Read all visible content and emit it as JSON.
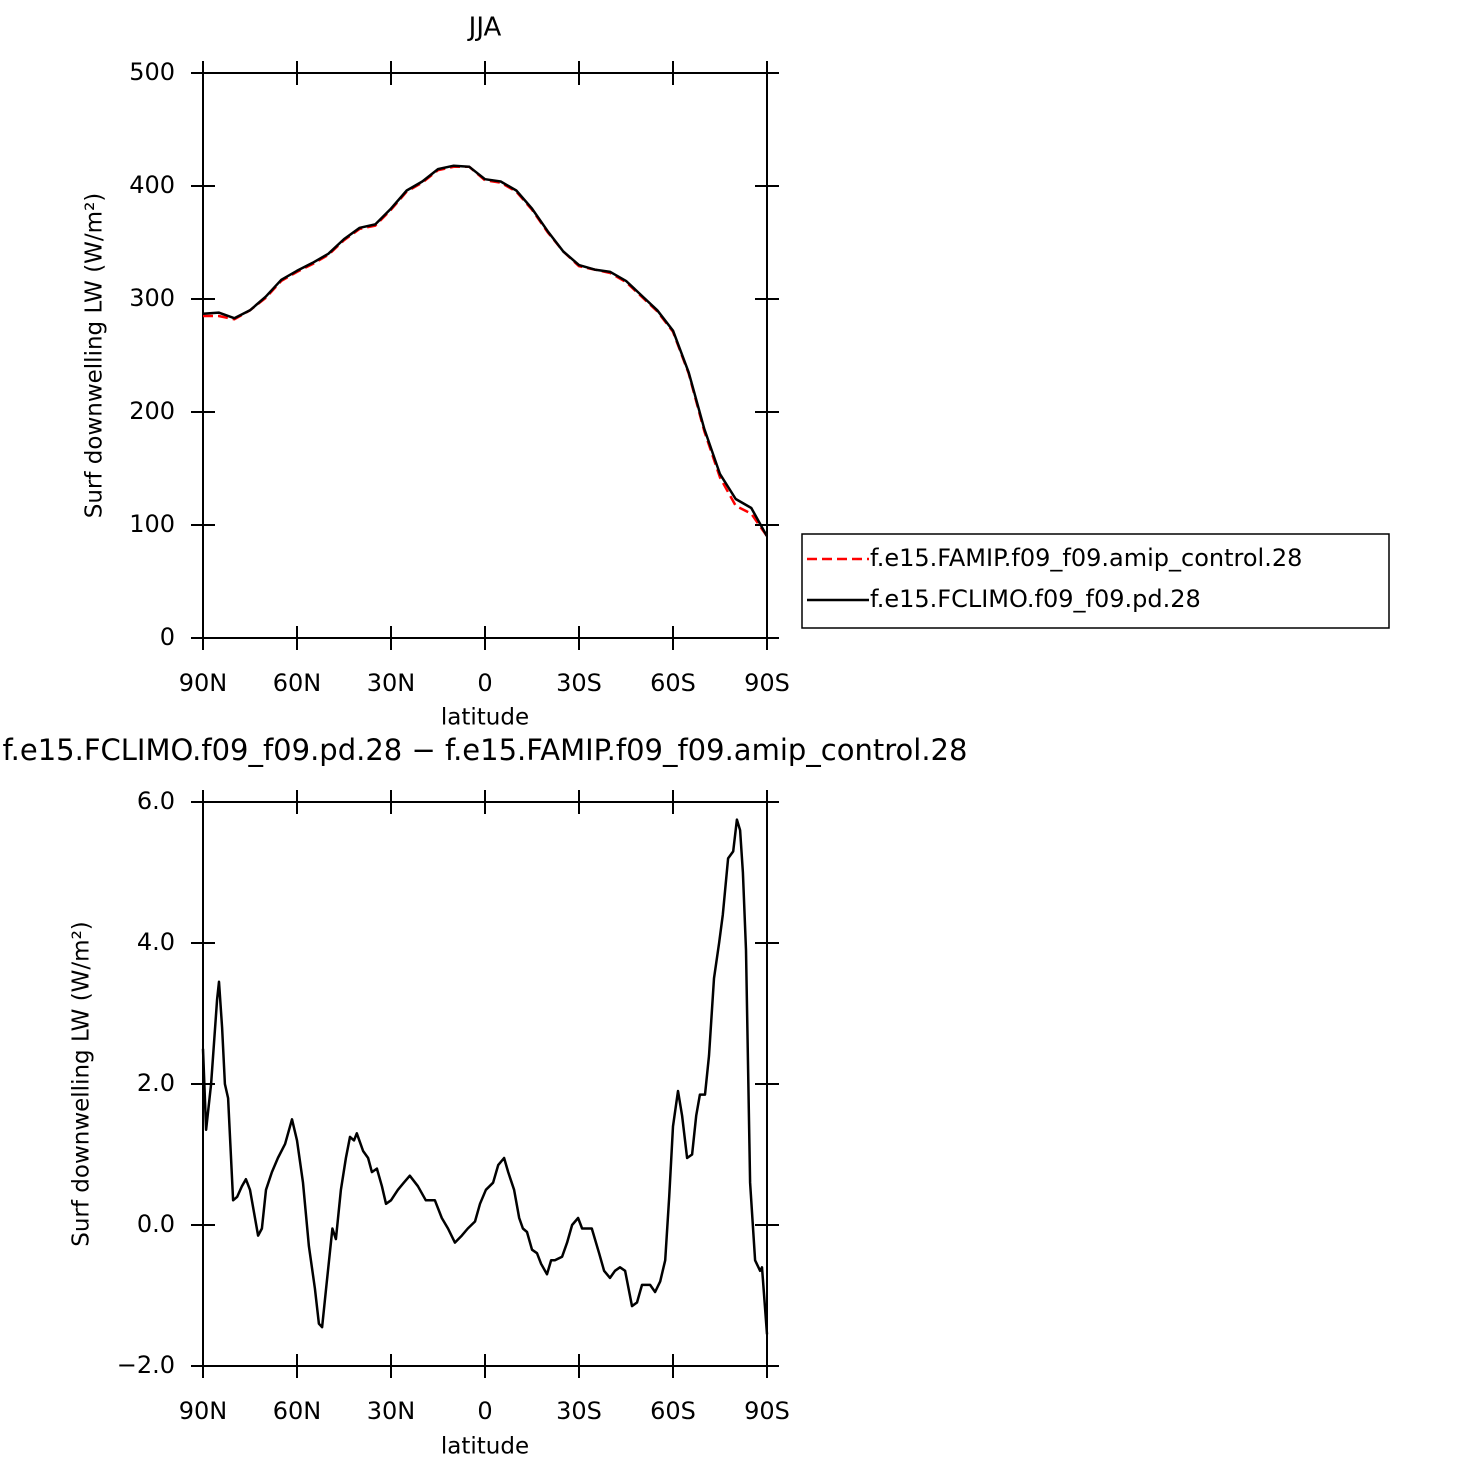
{
  "chart_data": [
    {
      "type": "line",
      "title": "JJA",
      "xlabel": "latitude",
      "ylabel": "Surf downwelling LW (W/m²)",
      "x": [
        90,
        85,
        80,
        75,
        70,
        65,
        60,
        55,
        50,
        45,
        40,
        35,
        30,
        25,
        20,
        15,
        10,
        5,
        0,
        -5,
        -10,
        -15,
        -20,
        -25,
        -30,
        -35,
        -40,
        -45,
        -50,
        -55,
        -60,
        -65,
        -70,
        -75,
        -80,
        -85,
        -90
      ],
      "series": [
        {
          "name": "f.e15.FAMIP.f09_f09.amip_control.28",
          "color": "#ff0000",
          "linestyle": "dashed",
          "values": [
            285,
            285,
            282,
            290,
            301,
            316,
            324,
            331,
            339,
            352,
            362,
            365,
            379,
            395,
            403,
            414,
            417,
            417,
            405,
            403,
            395,
            379,
            359,
            342,
            329,
            326,
            323,
            315,
            302,
            289,
            271,
            234,
            183,
            142,
            117,
            110,
            90
          ]
        },
        {
          "name": "f.e15.FCLIMO.f09_f09.pd.28",
          "color": "#000000",
          "linestyle": "solid",
          "values": [
            287,
            288,
            283,
            290,
            302,
            317,
            325,
            332,
            340,
            353,
            363,
            366,
            380,
            396,
            404,
            415,
            418,
            417,
            406,
            404,
            396,
            380,
            360,
            342,
            330,
            326,
            324,
            316,
            303,
            290,
            272,
            235,
            185,
            145,
            123,
            115,
            90
          ]
        }
      ],
      "xlim": [
        90,
        -90
      ],
      "xticks": [
        {
          "value": 90,
          "label": "90N"
        },
        {
          "value": 60,
          "label": "60N"
        },
        {
          "value": 30,
          "label": "30N"
        },
        0,
        {
          "value": -30,
          "label": "30S"
        },
        {
          "value": -60,
          "label": "60S"
        },
        {
          "value": -90,
          "label": "90S"
        }
      ],
      "ylim": [
        0,
        500
      ],
      "yticks": [
        0,
        100,
        200,
        300,
        400,
        500
      ],
      "legend": "right"
    },
    {
      "type": "line",
      "title": "f.e15.FCLIMO.f09_f09.pd.28 − f.e15.FAMIP.f09_f09.amip_control.28",
      "xlabel": "latitude",
      "ylabel": "Surf downwelling LW (W/m²)",
      "x": [
        90,
        89.0,
        87.4,
        85.5,
        84.9,
        83.9,
        83.0,
        82.0,
        80.4,
        79.1,
        77.6,
        76.3,
        75.0,
        72.4,
        71.2,
        69.9,
        68.0,
        66.1,
        63.8,
        61.6,
        60.0,
        58.1,
        56.2,
        54.3,
        53.0,
        52.0,
        50.7,
        48.7,
        47.6,
        46.0,
        44.4,
        43.1,
        41.8,
        40.9,
        38.9,
        37.3,
        36.1,
        34.5,
        32.9,
        31.6,
        30.0,
        27.8,
        25.9,
        24.0,
        21.4,
        18.9,
        16.0,
        13.8,
        11.8,
        9.6,
        7.4,
        5.5,
        3.2,
        1.6,
        -0.3,
        -2.6,
        -4.2,
        -6.1,
        -7.4,
        -9.3,
        -10.9,
        -12.1,
        -13.4,
        -15.0,
        -16.6,
        -17.9,
        -19.8,
        -21.1,
        -22.3,
        -24.6,
        -26.2,
        -27.8,
        -29.7,
        -31.0,
        -34.1,
        -36.4,
        -38.0,
        -39.9,
        -41.5,
        -43.1,
        -44.7,
        -46.9,
        -48.5,
        -50.1,
        -52.7,
        -54.3,
        -55.9,
        -57.5,
        -58.8,
        -60.0,
        -61.6,
        -62.9,
        -64.5,
        -66.1,
        -67.4,
        -68.6,
        -70.2,
        -71.5,
        -73.1,
        -74.7,
        -75.9,
        -77.6,
        -79.2,
        -80.4,
        -81.4,
        -82.3,
        -83.3,
        -84.6,
        -86.2,
        -87.8,
        -88.4,
        -90
      ],
      "values": [
        2.5,
        1.35,
        2.0,
        3.2,
        3.45,
        2.8,
        2.0,
        1.8,
        0.35,
        0.4,
        0.55,
        0.65,
        0.5,
        -0.15,
        -0.05,
        0.5,
        0.75,
        0.95,
        1.15,
        1.5,
        1.2,
        0.6,
        -0.3,
        -0.9,
        -1.4,
        -1.45,
        -0.9,
        -0.05,
        -0.2,
        0.5,
        0.95,
        1.25,
        1.2,
        1.3,
        1.05,
        0.95,
        0.75,
        0.8,
        0.55,
        0.3,
        0.35,
        0.5,
        0.6,
        0.7,
        0.55,
        0.35,
        0.35,
        0.1,
        -0.05,
        -0.25,
        -0.15,
        -0.05,
        0.05,
        0.3,
        0.5,
        0.6,
        0.85,
        0.95,
        0.75,
        0.5,
        0.1,
        -0.05,
        -0.1,
        -0.35,
        -0.4,
        -0.55,
        -0.7,
        -0.5,
        -0.5,
        -0.45,
        -0.25,
        0,
        0.1,
        -0.05,
        -0.05,
        -0.4,
        -0.65,
        -0.75,
        -0.65,
        -0.6,
        -0.65,
        -1.15,
        -1.1,
        -0.85,
        -0.85,
        -0.95,
        -0.8,
        -0.5,
        0.4,
        1.4,
        1.9,
        1.55,
        0.95,
        1.0,
        1.55,
        1.85,
        1.85,
        2.4,
        3.5,
        4.0,
        4.4,
        5.2,
        5.3,
        5.75,
        5.6,
        5.0,
        3.9,
        0.6,
        -0.5,
        -0.65,
        -0.6,
        -1.55
      ],
      "color": "#000000",
      "linestyle": "solid",
      "xlim": [
        90,
        -90
      ],
      "xticks": [
        {
          "value": 90,
          "label": "90N"
        },
        {
          "value": 60,
          "label": "60N"
        },
        {
          "value": 30,
          "label": "30N"
        },
        0,
        {
          "value": -30,
          "label": "30S"
        },
        {
          "value": -60,
          "label": "60S"
        },
        {
          "value": -90,
          "label": "90S"
        }
      ],
      "ylim": [
        -2,
        6
      ],
      "yticks": [
        {
          "value": -2,
          "label": "−2.0"
        },
        {
          "value": 0,
          "label": "0.0"
        },
        {
          "value": 2,
          "label": "2.0"
        },
        {
          "value": 4,
          "label": "4.0"
        },
        {
          "value": 6,
          "label": "6.0"
        }
      ]
    }
  ]
}
